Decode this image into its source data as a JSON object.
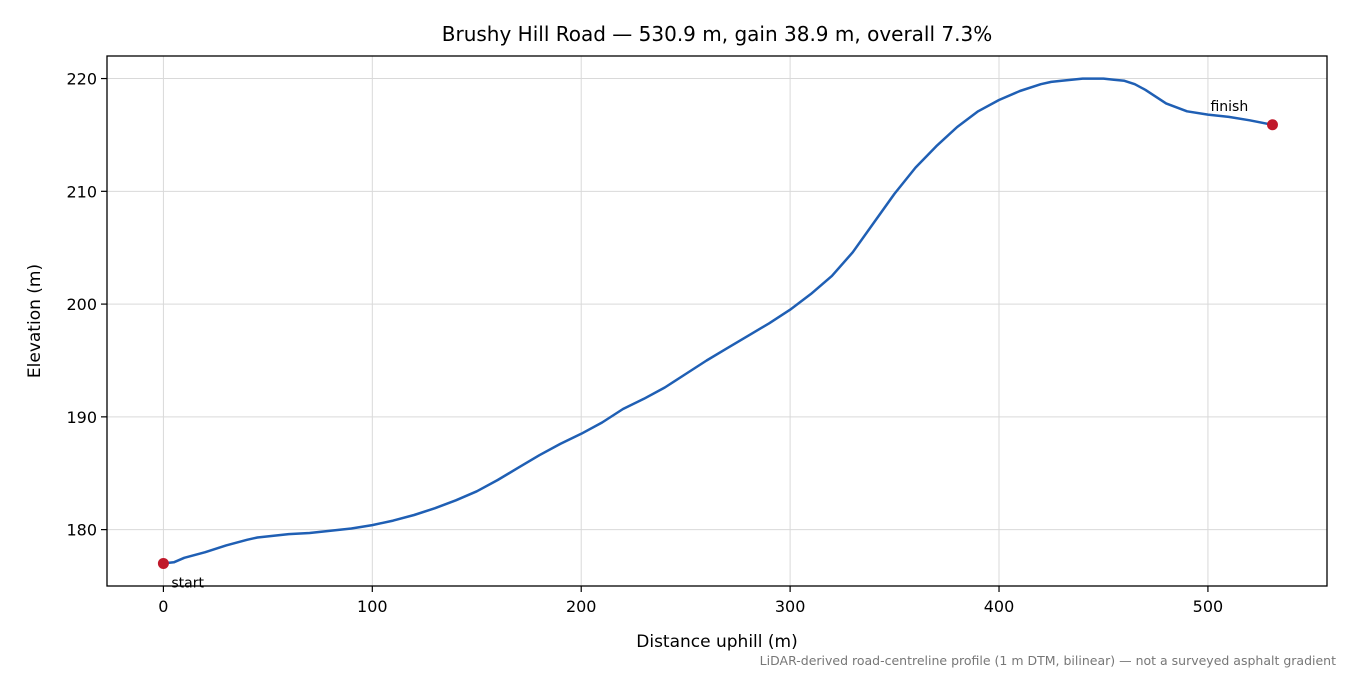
{
  "chart_data": {
    "type": "line",
    "title": "Brushy Hill Road — 530.9 m, gain 38.9 m, overall 7.3%",
    "xlabel": "Distance uphill (m)",
    "ylabel": "Elevation (m)",
    "xlim": [
      -27,
      557
    ],
    "ylim": [
      175,
      222
    ],
    "xticks": [
      0,
      100,
      200,
      300,
      400,
      500
    ],
    "yticks": [
      180,
      190,
      200,
      210,
      220
    ],
    "grid": true,
    "series": [
      {
        "color": "#1f5fb4",
        "x": [
          0,
          5,
          10,
          20,
          30,
          40,
          45,
          50,
          60,
          70,
          80,
          90,
          100,
          110,
          120,
          130,
          140,
          150,
          160,
          170,
          180,
          190,
          200,
          210,
          220,
          230,
          240,
          250,
          260,
          270,
          280,
          290,
          300,
          310,
          320,
          330,
          340,
          350,
          360,
          370,
          380,
          390,
          400,
          410,
          420,
          425,
          430,
          440,
          450,
          455,
          460,
          465,
          470,
          480,
          490,
          500,
          510,
          520,
          530.9
        ],
        "y": [
          177.0,
          177.1,
          177.5,
          178.0,
          178.6,
          179.1,
          179.3,
          179.4,
          179.6,
          179.7,
          179.9,
          180.1,
          180.4,
          180.8,
          181.3,
          181.9,
          182.6,
          183.4,
          184.4,
          185.5,
          186.6,
          187.6,
          188.5,
          189.5,
          190.7,
          191.6,
          192.6,
          193.8,
          195.0,
          196.1,
          197.2,
          198.3,
          199.5,
          200.9,
          202.5,
          204.6,
          207.2,
          209.8,
          212.1,
          214.0,
          215.7,
          217.1,
          218.1,
          218.9,
          219.5,
          219.7,
          219.8,
          220.0,
          220.0,
          219.9,
          219.8,
          219.5,
          219.0,
          217.8,
          217.1,
          216.8,
          216.6,
          216.3,
          215.9
        ]
      }
    ],
    "markers": [
      {
        "x": 0,
        "y": 177.0,
        "label": "start",
        "color": "#c0192b"
      },
      {
        "x": 530.9,
        "y": 215.9,
        "label": "finish",
        "color": "#c0192b"
      }
    ],
    "caption": "LiDAR-derived road-centreline profile (1 m DTM, bilinear) — not a surveyed asphalt gradient"
  }
}
